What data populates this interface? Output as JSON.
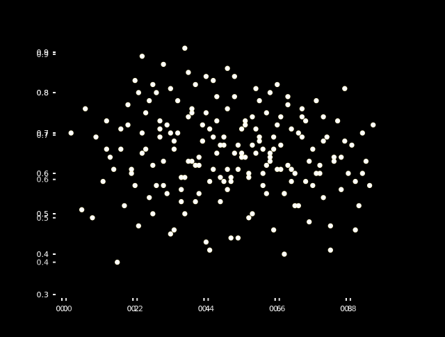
{
  "chart_data": {
    "type": "scatter",
    "title": "",
    "xlabel": "",
    "ylabel": "",
    "xlim": [
      0.0,
      0.9
    ],
    "ylim": [
      0.3,
      0.9
    ],
    "grid": false,
    "legend": "none",
    "x_tick_labels": [
      {
        "value": 0.0,
        "label": "0.0"
      },
      {
        "value": 0.2,
        "label": "0.2"
      },
      {
        "value": 0.4,
        "label": "0.4"
      },
      {
        "value": 0.6,
        "label": "0.6"
      },
      {
        "value": 0.8,
        "label": "0.8"
      }
    ],
    "x_tick_ghost_labels": [
      {
        "value": 0.0,
        "label": "0.0"
      },
      {
        "value": 0.2,
        "label": "0.2"
      },
      {
        "value": 0.4,
        "label": "0.4"
      },
      {
        "value": 0.6,
        "label": "0.6"
      },
      {
        "value": 0.8,
        "label": "0.8"
      }
    ],
    "y_tick_labels": [
      {
        "value": 0.3,
        "label": "0.3"
      },
      {
        "value": 0.4,
        "label": "0.4"
      },
      {
        "value": 0.5,
        "label": "0.5"
      },
      {
        "value": 0.6,
        "label": "0.6"
      },
      {
        "value": 0.7,
        "label": "0.7"
      },
      {
        "value": 0.8,
        "label": "0.8"
      },
      {
        "value": 0.9,
        "label": "0.9"
      }
    ],
    "y_tick_ghost_labels": [
      {
        "value": 0.38,
        "label": "0.4"
      },
      {
        "value": 0.49,
        "label": "0.5"
      },
      {
        "value": 0.585,
        "label": "0.6"
      },
      {
        "value": 0.695,
        "label": "0.7"
      },
      {
        "value": 0.8,
        "label": "0.8"
      },
      {
        "value": 0.895,
        "label": "0.9"
      }
    ],
    "colors": {
      "background": "#000000",
      "marker": "#ffffff",
      "marker_edge": "#fff7c2",
      "text": "#ffffff"
    },
    "series": [
      {
        "marker": "circle",
        "x": [
          0.02,
          0.05,
          0.06,
          0.08,
          0.09,
          0.11,
          0.12,
          0.13,
          0.15,
          0.16,
          0.17,
          0.18,
          0.19,
          0.2,
          0.21,
          0.22,
          0.23,
          0.24,
          0.25,
          0.26,
          0.27,
          0.28,
          0.29,
          0.3,
          0.31,
          0.32,
          0.33,
          0.34,
          0.35,
          0.36,
          0.37,
          0.38,
          0.39,
          0.4,
          0.41,
          0.42,
          0.43,
          0.44,
          0.45,
          0.46,
          0.47,
          0.48,
          0.49,
          0.5,
          0.51,
          0.52,
          0.53,
          0.54,
          0.55,
          0.56,
          0.57,
          0.58,
          0.59,
          0.6,
          0.61,
          0.62,
          0.63,
          0.64,
          0.65,
          0.66,
          0.67,
          0.68,
          0.69,
          0.7,
          0.71,
          0.72,
          0.73,
          0.74,
          0.75,
          0.76,
          0.77,
          0.78,
          0.79,
          0.8,
          0.81,
          0.82,
          0.83,
          0.84,
          0.85,
          0.86,
          0.87,
          0.22,
          0.25,
          0.28,
          0.31,
          0.34,
          0.37,
          0.4,
          0.43,
          0.46,
          0.49,
          0.52,
          0.55,
          0.58,
          0.61,
          0.64,
          0.67,
          0.7,
          0.73,
          0.76,
          0.79,
          0.82,
          0.19,
          0.23,
          0.27,
          0.33,
          0.38,
          0.42,
          0.47,
          0.53,
          0.57,
          0.62,
          0.68,
          0.72,
          0.26,
          0.3,
          0.35,
          0.39,
          0.44,
          0.48,
          0.51,
          0.56,
          0.6,
          0.65,
          0.36,
          0.41,
          0.45,
          0.5,
          0.54,
          0.59,
          0.63,
          0.29,
          0.32,
          0.43,
          0.46,
          0.55,
          0.58,
          0.61
        ],
        "y": [
          0.7,
          0.51,
          0.76,
          0.49,
          0.69,
          0.58,
          0.73,
          0.64,
          0.38,
          0.71,
          0.52,
          0.77,
          0.6,
          0.83,
          0.47,
          0.65,
          0.75,
          0.54,
          0.62,
          0.8,
          0.69,
          0.57,
          0.72,
          0.45,
          0.66,
          0.78,
          0.59,
          0.5,
          0.74,
          0.63,
          0.82,
          0.55,
          0.68,
          0.43,
          0.71,
          0.61,
          0.79,
          0.53,
          0.67,
          0.76,
          0.58,
          0.84,
          0.44,
          0.65,
          0.73,
          0.6,
          0.5,
          0.81,
          0.69,
          0.57,
          0.75,
          0.63,
          0.46,
          0.72,
          0.67,
          0.55,
          0.79,
          0.61,
          0.52,
          0.7,
          0.74,
          0.58,
          0.48,
          0.66,
          0.78,
          0.62,
          0.54,
          0.69,
          0.41,
          0.64,
          0.73,
          0.56,
          0.81,
          0.6,
          0.67,
          0.46,
          0.52,
          0.7,
          0.63,
          0.57,
          0.72,
          0.89,
          0.82,
          0.87,
          0.68,
          0.91,
          0.62,
          0.84,
          0.73,
          0.56,
          0.67,
          0.59,
          0.78,
          0.65,
          0.61,
          0.71,
          0.69,
          0.57,
          0.74,
          0.63,
          0.68,
          0.58,
          0.61,
          0.66,
          0.71,
          0.53,
          0.64,
          0.69,
          0.59,
          0.67,
          0.62,
          0.55,
          0.73,
          0.6,
          0.57,
          0.7,
          0.63,
          0.68,
          0.59,
          0.65,
          0.72,
          0.66,
          0.61,
          0.6,
          0.75,
          0.58,
          0.69,
          0.64,
          0.71,
          0.66,
          0.62,
          0.55,
          0.7,
          0.65,
          0.61,
          0.68,
          0.64,
          0.74
        ]
      },
      {
        "marker": "circle",
        "x": [
          0.14,
          0.2,
          0.25,
          0.31,
          0.37,
          0.41,
          0.47,
          0.52,
          0.57,
          0.62,
          0.66,
          0.71,
          0.75,
          0.16,
          0.22,
          0.28,
          0.34,
          0.39,
          0.44,
          0.49,
          0.54,
          0.59,
          0.64,
          0.69,
          0.24,
          0.3,
          0.36,
          0.42,
          0.48,
          0.53,
          0.58,
          0.63,
          0.33,
          0.38,
          0.45,
          0.51,
          0.56,
          0.27,
          0.4,
          0.5,
          0.21,
          0.35,
          0.46,
          0.6,
          0.67,
          0.73,
          0.78,
          0.12,
          0.18,
          0.84
        ],
        "y": [
          0.61,
          0.57,
          0.5,
          0.46,
          0.53,
          0.41,
          0.44,
          0.49,
          0.55,
          0.4,
          0.52,
          0.6,
          0.47,
          0.66,
          0.7,
          0.63,
          0.59,
          0.72,
          0.67,
          0.61,
          0.65,
          0.69,
          0.58,
          0.63,
          0.78,
          0.81,
          0.76,
          0.83,
          0.79,
          0.74,
          0.8,
          0.77,
          0.56,
          0.62,
          0.58,
          0.64,
          0.6,
          0.73,
          0.75,
          0.71,
          0.8,
          0.85,
          0.86,
          0.82,
          0.76,
          0.68,
          0.64,
          0.66,
          0.72,
          0.6
        ]
      }
    ]
  }
}
